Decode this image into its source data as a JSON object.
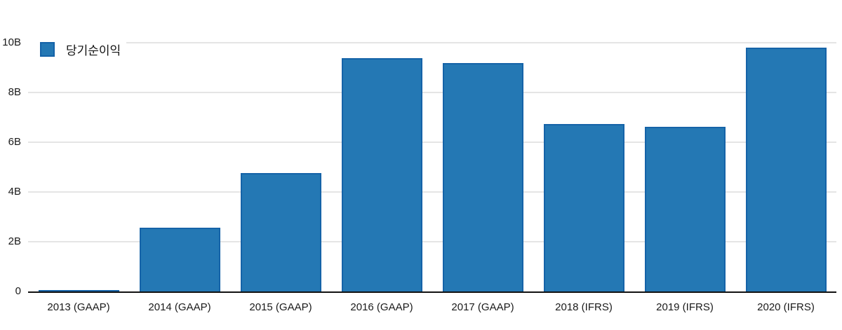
{
  "chart_data": {
    "type": "bar",
    "title": "",
    "legend": [
      "당기순이익"
    ],
    "legend_position": "top-left",
    "categories": [
      "2013 (GAAP)",
      "2014 (GAAP)",
      "2015 (GAAP)",
      "2016 (GAAP)",
      "2017 (GAAP)",
      "2018 (IFRS)",
      "2019 (IFRS)",
      "2020 (IFRS)"
    ],
    "values": [
      0.07,
      2.56,
      4.75,
      9.38,
      9.17,
      6.74,
      6.62,
      9.79
    ],
    "unit": "B",
    "xlabel": "",
    "ylabel": "",
    "ylim": [
      0,
      10
    ],
    "yticks": [
      {
        "value": 0,
        "label": "0"
      },
      {
        "value": 2,
        "label": "2B"
      },
      {
        "value": 4,
        "label": "4B"
      },
      {
        "value": 6,
        "label": "6B"
      },
      {
        "value": 8,
        "label": "8B"
      },
      {
        "value": 10,
        "label": "10B"
      }
    ],
    "grid": "horizontal",
    "colors": {
      "bar_fill": "#2478b4",
      "bar_stroke": "#1563a8",
      "gridline": "#e5e5e5",
      "axis": "#111111",
      "text": "#1a1a1a",
      "background": "#ffffff"
    }
  }
}
